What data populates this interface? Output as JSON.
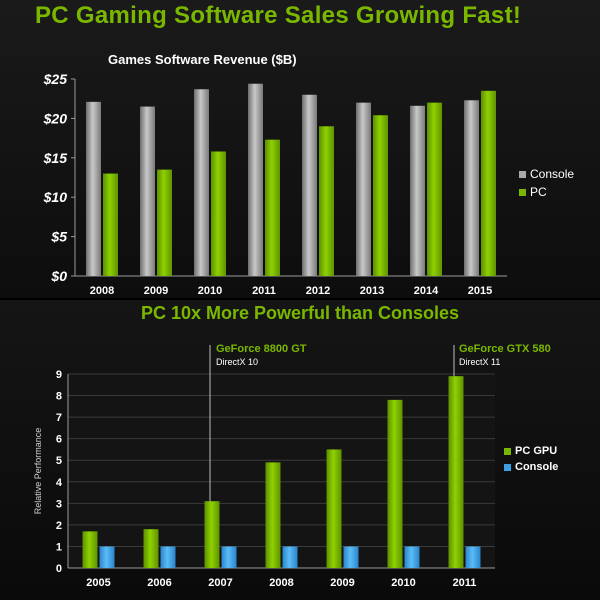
{
  "headline": "PC Gaming Software Sales Growing Fast!",
  "subhead": "PC 10x More Powerful than Consoles",
  "colors": {
    "accent": "#7ab800",
    "console_gray": "#9a9a9a",
    "pc_green": "#7ab800",
    "console_blue": "#3aa0e6"
  },
  "chart_data": [
    {
      "type": "bar",
      "title": "Games Software Revenue ($B)",
      "xlabel": "",
      "ylabel": "",
      "categories": [
        "2008",
        "2009",
        "2010",
        "2011",
        "2012",
        "2013",
        "2014",
        "2015"
      ],
      "series": [
        {
          "name": "Console",
          "values": [
            22.1,
            21.5,
            23.7,
            24.4,
            23.0,
            22.0,
            21.6,
            22.3
          ]
        },
        {
          "name": "PC",
          "values": [
            13.0,
            13.5,
            15.8,
            17.3,
            19.0,
            20.4,
            22.0,
            23.5
          ]
        }
      ],
      "ylim": [
        0,
        25
      ],
      "yticks": [
        "$0",
        "$5",
        "$10",
        "$15",
        "$20",
        "$25"
      ],
      "grid": false,
      "legend": "right"
    },
    {
      "type": "bar",
      "title": "",
      "xlabel": "",
      "ylabel": "Relative Performance",
      "categories": [
        "2005",
        "2006",
        "2007",
        "2008",
        "2009",
        "2010",
        "2011"
      ],
      "series": [
        {
          "name": "PC GPU",
          "values": [
            1.7,
            1.8,
            3.1,
            4.9,
            5.5,
            7.8,
            8.9
          ]
        },
        {
          "name": "Console",
          "values": [
            1,
            1,
            1,
            1,
            1,
            1,
            1
          ]
        }
      ],
      "ylim": [
        0,
        9
      ],
      "yticks": [
        "0",
        "1",
        "2",
        "3",
        "4",
        "5",
        "6",
        "7",
        "8",
        "9"
      ],
      "grid": true,
      "legend": "right",
      "annotations": [
        {
          "category": "2007",
          "label": "GeForce 8800 GT",
          "sublabel": "DirectX 10"
        },
        {
          "category": "2011",
          "label": "GeForce GTX 580",
          "sublabel": "DirectX 11"
        }
      ]
    }
  ]
}
